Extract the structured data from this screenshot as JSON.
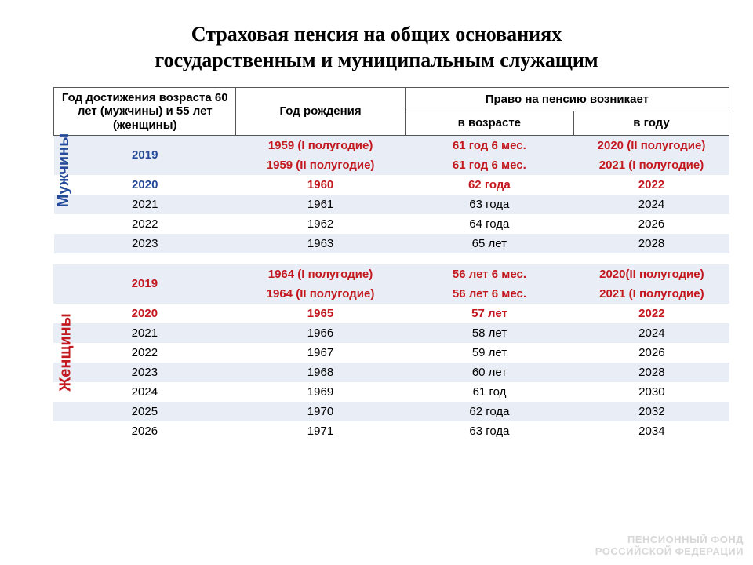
{
  "title_line1": "Страховая пенсия на общих основаниях",
  "title_line2": "государственным и муниципальным служащим",
  "columns": {
    "c1": "Год достижения возраста 60 лет  (мужчины) и 55 лет (женщины)",
    "c2": "Год рождения",
    "c_group": "Право на пенсию возникает",
    "c3": "в возрасте",
    "c4": "в году"
  },
  "side_labels": {
    "men": "Мужчины",
    "women": "Женщины"
  },
  "men_rows": [
    {
      "c1": "2019",
      "c1_rowspan": 2,
      "c2": "1959 (I полугодие)",
      "c3": "61 год 6 мес.",
      "c4": "2020 (II полугодие)",
      "strong": true,
      "stripe": true
    },
    {
      "c2": "1959  (II полугодие)",
      "c3": "61 год 6 мес.",
      "c4": "2021 (I полугодие)",
      "strong": true,
      "stripe": true
    },
    {
      "c1": "2020",
      "c2": "1960",
      "c3": "62 года",
      "c4": "2022",
      "strong": true,
      "stripe": false
    },
    {
      "c1": "2021",
      "c2": "1961",
      "c3": "63 года",
      "c4": "2024",
      "stripe": true
    },
    {
      "c1": "2022",
      "c2": "1962",
      "c3": "64 года",
      "c4": "2026",
      "stripe": false
    },
    {
      "c1": "2023",
      "c2": "1963",
      "c3": "65 лет",
      "c4": "2028",
      "stripe": true
    }
  ],
  "women_rows": [
    {
      "c1": "2019",
      "c1_rowspan": 2,
      "c2": "1964 (I полугодие)",
      "c3": "56 лет 6 мес.",
      "c4": "2020(II полугодие)",
      "strong": true,
      "stripe": true
    },
    {
      "c2": "1964  (II полугодие)",
      "c3": "56 лет 6 мес.",
      "c4": "2021 (I полугодие)",
      "strong": true,
      "stripe": true
    },
    {
      "c1": "2020",
      "c2": "1965",
      "c3": "57 лет",
      "c4": "2022",
      "strong": true,
      "stripe": false
    },
    {
      "c1": "2021",
      "c2": "1966",
      "c3": "58 лет",
      "c4": "2024",
      "stripe": true
    },
    {
      "c1": "2022",
      "c2": "1967",
      "c3": "59 лет",
      "c4": "2026",
      "stripe": false
    },
    {
      "c1": "2023",
      "c2": "1968",
      "c3": "60 лет",
      "c4": "2028",
      "stripe": true
    },
    {
      "c1": "2024",
      "c2": "1969",
      "c3": "61 год",
      "c4": "2030",
      "stripe": false
    },
    {
      "c1": "2025",
      "c2": "1970",
      "c3": "62 года",
      "c4": "2032",
      "stripe": true
    },
    {
      "c1": "2026",
      "c2": "1971",
      "c3": "63 года",
      "c4": "2034",
      "stripe": false
    }
  ],
  "footer": {
    "l1": "ПЕНСИОННЫЙ ФОНД",
    "l2": "РОССИЙСКОЙ ФЕДЕРАЦИИ"
  },
  "colors": {
    "red": "#c4181f",
    "blue": "#254a99",
    "stripe": "#e9edf5",
    "footer": "#d7d7d7"
  }
}
